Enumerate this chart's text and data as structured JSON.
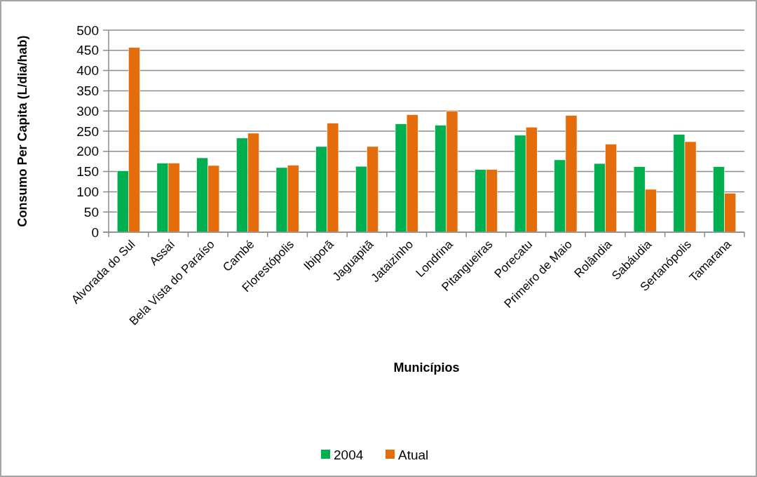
{
  "chart_data": {
    "type": "bar",
    "xlabel": "Municípios",
    "ylabel": "Consumo Per Capita (L/dia/hab)",
    "categories": [
      "Alvorada do Sul",
      "Assaí",
      "Bela Vista do Paraíso",
      "Cambé",
      "Florestópolis",
      "Ibiporã",
      "Jaguapitã",
      "Jataizinho",
      "Londrina",
      "Pitangueiras",
      "Porecatu",
      "Primeiro de Maio",
      "Rolândia",
      "Sabáudia",
      "Sertanópolis",
      "Tamarana"
    ],
    "series": [
      {
        "name": "2004",
        "color": "#00b050",
        "values": [
          152,
          171,
          184,
          233,
          160,
          212,
          163,
          268,
          265,
          155,
          240,
          179,
          170,
          162,
          242,
          162
        ]
      },
      {
        "name": "Atual",
        "color": "#e46c0a",
        "values": [
          457,
          171,
          165,
          245,
          166,
          270,
          212,
          291,
          300,
          155,
          260,
          289,
          218,
          106,
          224,
          96
        ]
      }
    ],
    "ylim": [
      0,
      500
    ],
    "yticks": [
      0,
      50,
      100,
      150,
      200,
      250,
      300,
      350,
      400,
      450,
      500
    ],
    "grid": "y",
    "legend": "bottom"
  }
}
